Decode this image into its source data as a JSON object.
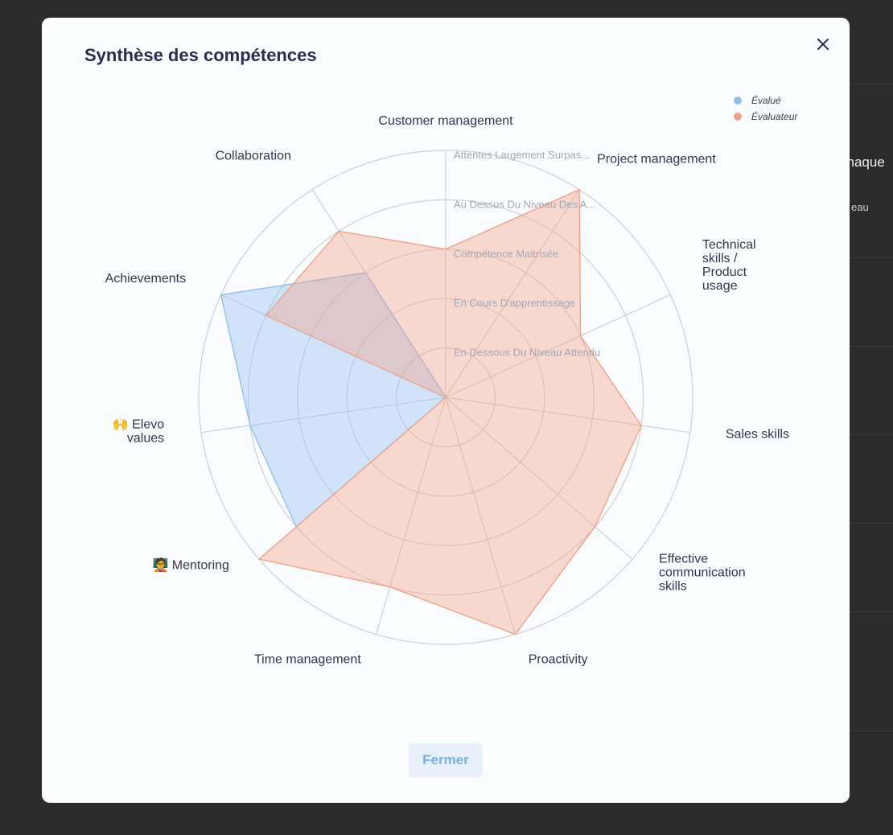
{
  "background": {
    "texts": [
      "chaque",
      "eau"
    ]
  },
  "modal": {
    "title": "Synthèse des compétences",
    "close_icon": "close-icon",
    "close_button_label": "Fermer"
  },
  "legend": [
    {
      "label": "Évalué",
      "color": "#90bff0"
    },
    {
      "label": "Évaluateur",
      "color": "#f0a38a"
    }
  ],
  "chart_data": {
    "type": "radar",
    "levels": [
      "En Dessous Du Niveau Attendu",
      "En Cours D'apprentissage",
      "Compétence Maitrisée",
      "Au Dessus Du Niveau Des A...",
      "Attentes Largement Surpas..."
    ],
    "axes": [
      {
        "lines": [
          "Customer management"
        ]
      },
      {
        "lines": [
          "Project management"
        ]
      },
      {
        "lines": [
          "Technical",
          "skills /",
          "Product",
          "usage"
        ]
      },
      {
        "lines": [
          "Sales skills"
        ]
      },
      {
        "lines": [
          "Effective",
          "communication",
          "skills"
        ]
      },
      {
        "lines": [
          "Proactivity"
        ]
      },
      {
        "lines": [
          "Time management"
        ]
      },
      {
        "lines": [
          "Mentoring"
        ],
        "emoji": "🧑‍🏫"
      },
      {
        "lines": [
          "Elevo",
          "values"
        ],
        "emoji": "🙌"
      },
      {
        "lines": [
          "Achievements"
        ]
      },
      {
        "lines": [
          "Collaboration"
        ]
      }
    ],
    "series": [
      {
        "name": "Évalué",
        "color": "#90bff0",
        "values": [
          0,
          0,
          0,
          0,
          0,
          0,
          0,
          4,
          4,
          5,
          3
        ]
      },
      {
        "name": "Évaluateur",
        "color": "#f0a38a",
        "values": [
          3,
          5,
          3,
          4,
          4,
          5,
          4,
          5,
          0,
          4,
          4
        ]
      }
    ],
    "max": 5
  }
}
